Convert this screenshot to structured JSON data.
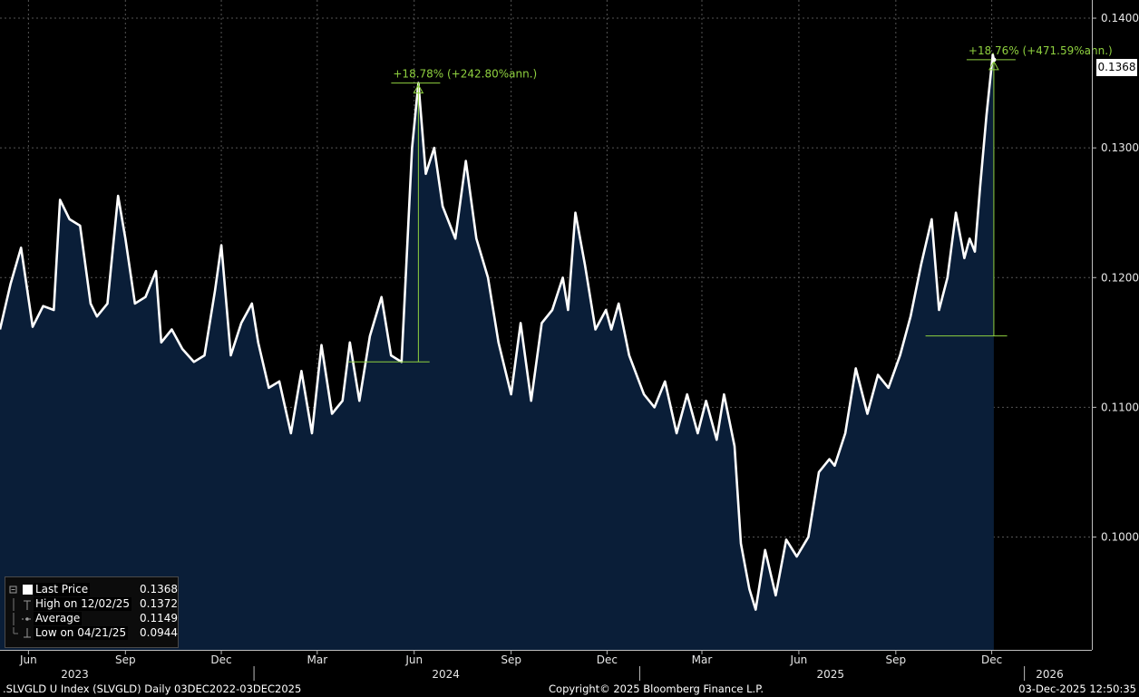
{
  "chart_data": {
    "type": "area",
    "title": "",
    "xlabel": "",
    "ylabel": "",
    "ylim": [
      0.0913,
      0.1414
    ],
    "y_ticks": [
      "0.1000",
      "0.1100",
      "0.1200",
      "0.1300",
      "0.1400"
    ],
    "y_tick_values": [
      0.1,
      0.11,
      0.12,
      0.13,
      0.14
    ],
    "x_month_ticks": [
      {
        "date": "2023-06-01",
        "label": "Jun"
      },
      {
        "date": "2023-09-01",
        "label": "Sep"
      },
      {
        "date": "2023-12-01",
        "label": "Dec"
      },
      {
        "date": "2024-03-01",
        "label": "Mar"
      },
      {
        "date": "2024-06-01",
        "label": "Jun"
      },
      {
        "date": "2024-09-01",
        "label": "Sep"
      },
      {
        "date": "2024-12-01",
        "label": "Dec"
      },
      {
        "date": "2025-03-01",
        "label": "Mar"
      },
      {
        "date": "2025-06-01",
        "label": "Jun"
      },
      {
        "date": "2025-09-01",
        "label": "Sep"
      },
      {
        "date": "2025-12-01",
        "label": "Dec"
      }
    ],
    "x_year_labels": [
      {
        "date": "2023-07-15",
        "label": "2023"
      },
      {
        "date": "2024-07-01",
        "label": "2024"
      },
      {
        "date": "2025-07-01",
        "label": "2025"
      },
      {
        "date": "2026-01-25",
        "label": "2026"
      }
    ],
    "x_year_separators": [
      "2024-01-01",
      "2025-01-01",
      "2026-01-01"
    ],
    "x_range": [
      "2023-05-05",
      "2026-03-06"
    ],
    "series": [
      {
        "name": "Last Price",
        "color": "#ffffff",
        "fill": "#0a1e38",
        "points": [
          [
            "2023-05-05",
            0.116
          ],
          [
            "2023-05-15",
            0.1195
          ],
          [
            "2023-05-25",
            0.1223
          ],
          [
            "2023-06-05",
            0.1162
          ],
          [
            "2023-06-15",
            0.1178
          ],
          [
            "2023-06-25",
            0.1175
          ],
          [
            "2023-07-01",
            0.126
          ],
          [
            "2023-07-10",
            0.1245
          ],
          [
            "2023-07-20",
            0.124
          ],
          [
            "2023-07-30",
            0.118
          ],
          [
            "2023-08-05",
            0.117
          ],
          [
            "2023-08-15",
            0.118
          ],
          [
            "2023-08-25",
            0.1263
          ],
          [
            "2023-09-01",
            0.123
          ],
          [
            "2023-09-10",
            0.118
          ],
          [
            "2023-09-20",
            0.1185
          ],
          [
            "2023-09-30",
            0.1205
          ],
          [
            "2023-10-05",
            0.115
          ],
          [
            "2023-10-15",
            0.116
          ],
          [
            "2023-10-25",
            0.1145
          ],
          [
            "2023-11-05",
            0.1135
          ],
          [
            "2023-11-15",
            0.114
          ],
          [
            "2023-11-25",
            0.119
          ],
          [
            "2023-12-01",
            0.1225
          ],
          [
            "2023-12-10",
            0.114
          ],
          [
            "2023-12-20",
            0.1165
          ],
          [
            "2023-12-30",
            0.118
          ],
          [
            "2024-01-05",
            0.115
          ],
          [
            "2024-01-15",
            0.1115
          ],
          [
            "2024-01-25",
            0.112
          ],
          [
            "2024-02-05",
            0.108
          ],
          [
            "2024-02-15",
            0.1128
          ],
          [
            "2024-02-25",
            0.108
          ],
          [
            "2024-03-05",
            0.1148
          ],
          [
            "2024-03-15",
            0.1095
          ],
          [
            "2024-03-25",
            0.1105
          ],
          [
            "2024-04-01",
            0.115
          ],
          [
            "2024-04-10",
            0.1105
          ],
          [
            "2024-04-20",
            0.1155
          ],
          [
            "2024-05-01",
            0.1185
          ],
          [
            "2024-05-10",
            0.114
          ],
          [
            "2024-05-20",
            0.1135
          ],
          [
            "2024-05-30",
            0.13
          ],
          [
            "2024-06-05",
            0.135
          ],
          [
            "2024-06-12",
            0.128
          ],
          [
            "2024-06-20",
            0.13
          ],
          [
            "2024-06-28",
            0.1255
          ],
          [
            "2024-07-10",
            0.123
          ],
          [
            "2024-07-20",
            0.129
          ],
          [
            "2024-07-30",
            0.123
          ],
          [
            "2024-08-10",
            0.12
          ],
          [
            "2024-08-20",
            0.115
          ],
          [
            "2024-09-01",
            0.111
          ],
          [
            "2024-09-10",
            0.1165
          ],
          [
            "2024-09-20",
            0.1105
          ],
          [
            "2024-09-30",
            0.1165
          ],
          [
            "2024-10-10",
            0.1175
          ],
          [
            "2024-10-20",
            0.12
          ],
          [
            "2024-10-25",
            0.1175
          ],
          [
            "2024-11-01",
            0.125
          ],
          [
            "2024-11-10",
            0.121
          ],
          [
            "2024-11-20",
            0.116
          ],
          [
            "2024-11-30",
            0.1175
          ],
          [
            "2024-12-05",
            0.116
          ],
          [
            "2024-12-12",
            0.118
          ],
          [
            "2024-12-22",
            0.114
          ],
          [
            "2025-01-05",
            0.111
          ],
          [
            "2025-01-15",
            0.11
          ],
          [
            "2025-01-25",
            0.112
          ],
          [
            "2025-02-05",
            0.108
          ],
          [
            "2025-02-15",
            0.111
          ],
          [
            "2025-02-25",
            0.108
          ],
          [
            "2025-03-05",
            0.1105
          ],
          [
            "2025-03-15",
            0.1075
          ],
          [
            "2025-03-22",
            0.111
          ],
          [
            "2025-04-01",
            0.107
          ],
          [
            "2025-04-07",
            0.0995
          ],
          [
            "2025-04-15",
            0.096
          ],
          [
            "2025-04-21",
            0.0944
          ],
          [
            "2025-04-30",
            0.099
          ],
          [
            "2025-05-10",
            0.0955
          ],
          [
            "2025-05-20",
            0.0998
          ],
          [
            "2025-05-30",
            0.0985
          ],
          [
            "2025-06-10",
            0.1
          ],
          [
            "2025-06-20",
            0.105
          ],
          [
            "2025-06-30",
            0.106
          ],
          [
            "2025-07-05",
            0.1055
          ],
          [
            "2025-07-15",
            0.108
          ],
          [
            "2025-07-25",
            0.113
          ],
          [
            "2025-08-05",
            0.1095
          ],
          [
            "2025-08-15",
            0.1125
          ],
          [
            "2025-08-25",
            0.1115
          ],
          [
            "2025-09-05",
            0.114
          ],
          [
            "2025-09-15",
            0.117
          ],
          [
            "2025-09-25",
            0.121
          ],
          [
            "2025-10-05",
            0.1245
          ],
          [
            "2025-10-12",
            0.1175
          ],
          [
            "2025-10-20",
            0.12
          ],
          [
            "2025-10-28",
            0.125
          ],
          [
            "2025-11-05",
            0.1215
          ],
          [
            "2025-11-10",
            0.123
          ],
          [
            "2025-11-15",
            0.122
          ],
          [
            "2025-11-20",
            0.127
          ],
          [
            "2025-11-26",
            0.1325
          ],
          [
            "2025-12-02",
            0.1372
          ],
          [
            "2025-12-03",
            0.1368
          ]
        ]
      }
    ],
    "annotations": [
      {
        "text": "+18.78% (+242.80%ann.)",
        "start_date": "2024-04-25",
        "start_value": 0.1135,
        "end_date": "2024-06-05",
        "end_value": 0.135
      },
      {
        "text": "+18.76% (+471.59%ann.)",
        "start_date": "2025-10-25",
        "start_value": 0.1155,
        "end_date": "2025-12-03",
        "end_value": 0.1368
      }
    ],
    "last_value_label": "0.1368",
    "legend": {
      "position": "bottom-left",
      "rows": [
        {
          "label": "Last Price",
          "value": "0.1368"
        },
        {
          "label": "High on 12/02/25",
          "value": "0.1372"
        },
        {
          "label": "Average",
          "value": "0.1149"
        },
        {
          "label": "Low on 04/21/25",
          "value": "0.0944"
        }
      ]
    },
    "grid": true
  },
  "footer": {
    "left": ".SLVGLD U Index (SLVGLD) Daily 03DEC2022-03DEC2025",
    "center": "Copyright© 2025 Bloomberg Finance L.P.",
    "right": "03-Dec-2025 12:50:35"
  },
  "colors": {
    "background": "#000000",
    "area_fill": "#0a1e38",
    "line": "#ffffff",
    "annotation": "#8fd13f",
    "grid": "#555555"
  }
}
